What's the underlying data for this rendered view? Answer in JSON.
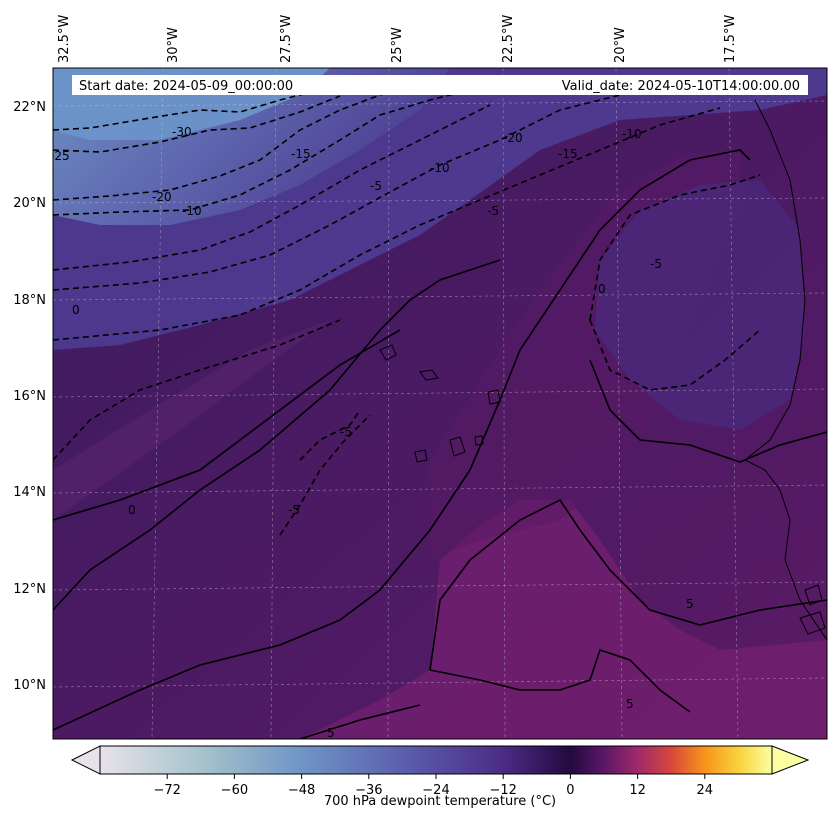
{
  "header": {
    "start_date": "Start date: 2024-05-09_00:00:00",
    "valid_date": "Valid_date: 2024-05-10T14:00:00.00"
  },
  "map": {
    "variable": "700 hPa dewpoint temperature",
    "longitude_labels": [
      "32.5°W",
      "30°W",
      "27.5°W",
      "25°W",
      "22.5°W",
      "20°W",
      "17.5°W"
    ],
    "latitude_labels": [
      "22°N",
      "20°N",
      "18°N",
      "16°N",
      "14°N",
      "12°N",
      "10°N"
    ],
    "contour_labels": [
      "-30",
      "-25",
      "-20",
      "-20",
      "-15",
      "-15",
      "-10",
      "-10",
      "-10",
      "-5",
      "-5",
      "-5",
      "-5",
      "-5",
      "0",
      "0",
      "0",
      "5",
      "5",
      "5"
    ],
    "colors": {
      "very_dry": "#6b8fc8",
      "dry": "#5a4e9e",
      "moist_low": "#3d1a5e",
      "zero": "#2a1040",
      "moist_high": "#6a1e6a"
    }
  },
  "colorbar": {
    "label": "700 hPa dewpoint temperature (°C)",
    "ticks": [
      "−72",
      "−60",
      "−48",
      "−36",
      "−24",
      "−12",
      "0",
      "12",
      "24"
    ],
    "tick_values": [
      -72,
      -60,
      -48,
      -36,
      -24,
      -12,
      0,
      12,
      24
    ],
    "range": [
      -84,
      36
    ],
    "extend": "both",
    "colormap_stops": [
      {
        "value": -84,
        "color": "#e8e2ea"
      },
      {
        "value": -66,
        "color": "#a6c3cc"
      },
      {
        "value": -48,
        "color": "#6f95c6"
      },
      {
        "value": -30,
        "color": "#5c5fae"
      },
      {
        "value": -12,
        "color": "#4b2c85"
      },
      {
        "value": 0,
        "color": "#23093f"
      },
      {
        "value": 6,
        "color": "#5a1668"
      },
      {
        "value": 12,
        "color": "#9e2a6a"
      },
      {
        "value": 18,
        "color": "#d8463c"
      },
      {
        "value": 24,
        "color": "#f7941c"
      },
      {
        "value": 30,
        "color": "#f8d23a"
      },
      {
        "value": 36,
        "color": "#fcfea4"
      }
    ]
  }
}
